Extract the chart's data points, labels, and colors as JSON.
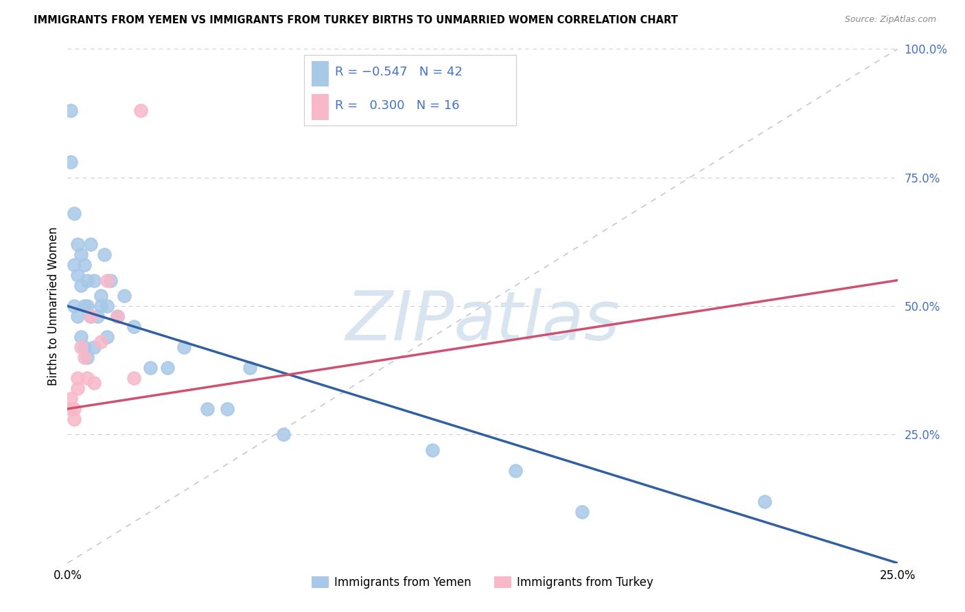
{
  "title": "IMMIGRANTS FROM YEMEN VS IMMIGRANTS FROM TURKEY BIRTHS TO UNMARRIED WOMEN CORRELATION CHART",
  "source": "Source: ZipAtlas.com",
  "ylabel": "Births to Unmarried Women",
  "legend_labels": [
    "Immigrants from Yemen",
    "Immigrants from Turkey"
  ],
  "r_yemen": -0.547,
  "n_yemen": 42,
  "r_turkey": 0.3,
  "n_turkey": 16,
  "blue_color": "#a8c8e8",
  "blue_line": "#3060a0",
  "pink_color": "#f8b8c8",
  "pink_line": "#d05070",
  "ref_line_color": "#c8c8c8",
  "watermark": "ZIPatlas",
  "watermark_color": "#d8e4f0",
  "background_color": "#ffffff",
  "grid_color": "#cccccc",
  "xlim": [
    0,
    0.25
  ],
  "ylim": [
    0,
    1.0
  ],
  "yemen_x": [
    0.001,
    0.001,
    0.002,
    0.002,
    0.003,
    0.003,
    0.004,
    0.004,
    0.005,
    0.005,
    0.006,
    0.006,
    0.007,
    0.008,
    0.009,
    0.01,
    0.011,
    0.012,
    0.013,
    0.015,
    0.017,
    0.02,
    0.025,
    0.03,
    0.035,
    0.042,
    0.048,
    0.055,
    0.065,
    0.11,
    0.135,
    0.155,
    0.21,
    0.002,
    0.003,
    0.004,
    0.005,
    0.006,
    0.007,
    0.008,
    0.01,
    0.012
  ],
  "yemen_y": [
    0.88,
    0.78,
    0.68,
    0.58,
    0.62,
    0.56,
    0.6,
    0.54,
    0.58,
    0.5,
    0.55,
    0.5,
    0.62,
    0.55,
    0.48,
    0.52,
    0.6,
    0.5,
    0.55,
    0.48,
    0.52,
    0.46,
    0.38,
    0.38,
    0.42,
    0.3,
    0.3,
    0.38,
    0.25,
    0.22,
    0.18,
    0.1,
    0.12,
    0.5,
    0.48,
    0.44,
    0.42,
    0.4,
    0.48,
    0.42,
    0.5,
    0.44
  ],
  "turkey_x": [
    0.001,
    0.001,
    0.002,
    0.002,
    0.003,
    0.003,
    0.004,
    0.005,
    0.006,
    0.007,
    0.008,
    0.01,
    0.012,
    0.015,
    0.02,
    0.022
  ],
  "turkey_y": [
    0.32,
    0.3,
    0.3,
    0.28,
    0.36,
    0.34,
    0.42,
    0.4,
    0.36,
    0.48,
    0.35,
    0.43,
    0.55,
    0.48,
    0.36,
    0.88
  ],
  "blue_trend_x": [
    0.0,
    0.25
  ],
  "blue_trend_y": [
    0.5,
    0.0
  ],
  "pink_trend_x": [
    0.0,
    0.25
  ],
  "pink_trend_y": [
    0.3,
    0.55
  ]
}
